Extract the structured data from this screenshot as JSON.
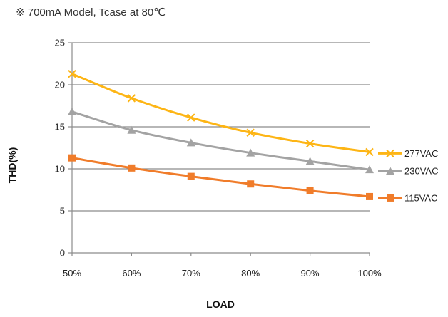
{
  "chart_data": {
    "type": "line",
    "title": "※ 700mA Model, Tcase at 80℃",
    "xlabel": "LOAD",
    "ylabel": "THD(%)",
    "categories": [
      "50%",
      "60%",
      "70%",
      "80%",
      "90%",
      "100%"
    ],
    "ylim": [
      0,
      25
    ],
    "yticks": [
      "0",
      "5",
      "10",
      "15",
      "20",
      "25"
    ],
    "grid": true,
    "legend": "right",
    "series": [
      {
        "name": "277VAC",
        "color": "#FDB515",
        "marker": "x",
        "values": [
          21.3,
          18.4,
          16.1,
          14.3,
          13.0,
          12.0
        ]
      },
      {
        "name": "230VAC",
        "color": "#A3A3A3",
        "marker": "triangle",
        "values": [
          16.8,
          14.6,
          13.1,
          11.9,
          10.9,
          9.9
        ]
      },
      {
        "name": "115VAC",
        "color": "#F07C2A",
        "marker": "square",
        "values": [
          11.3,
          10.1,
          9.1,
          8.2,
          7.4,
          6.7
        ]
      }
    ]
  }
}
